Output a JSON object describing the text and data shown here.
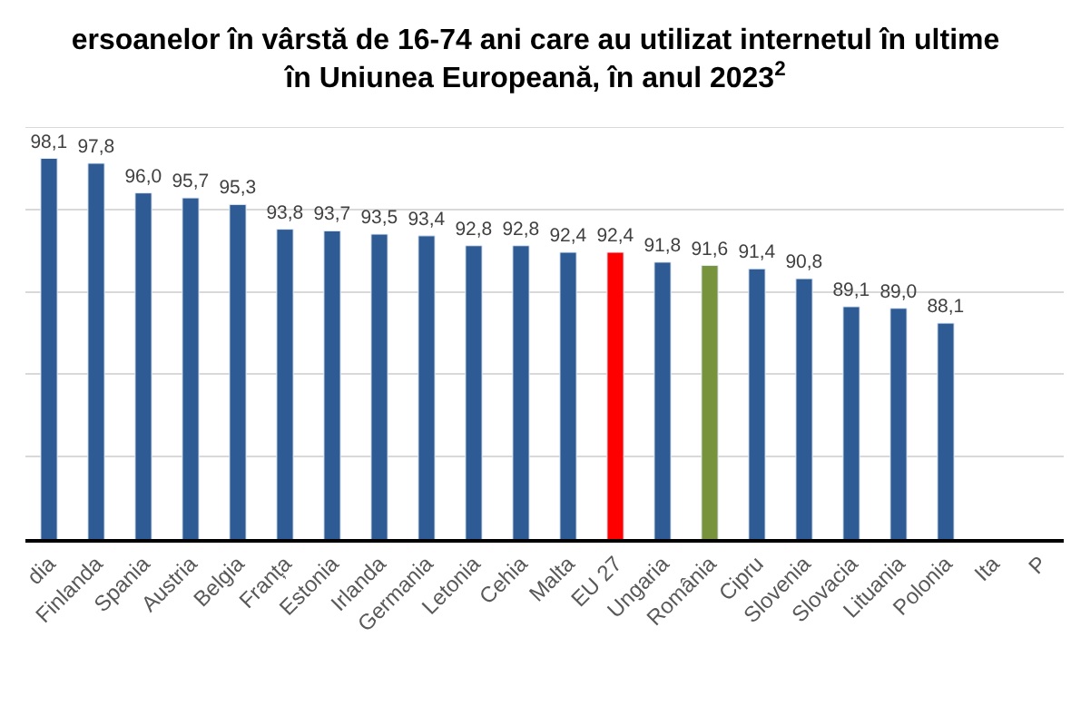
{
  "chart_data": {
    "type": "bar",
    "title": "ersoanelor în vârstă de 16-74 ani care au utilizat internetul în ultime\nîn Uniunea Europeană, în anul 2023$^{2}$",
    "categories": [
      "dia",
      "Finlanda",
      "Spania",
      "Austria",
      "Belgia",
      "Franța",
      "Estonia",
      "Irlanda",
      "Germania",
      "Letonia",
      "Cehia",
      "Malta",
      "EU 27",
      "Ungaria",
      "România",
      "Cipru",
      "Slovenia",
      "Slovacia",
      "Lituania",
      "Polonia",
      "Ita",
      "P"
    ],
    "values": [
      98.1,
      97.8,
      96.0,
      95.7,
      95.3,
      93.8,
      93.7,
      93.5,
      93.4,
      92.8,
      92.8,
      92.4,
      92.4,
      91.8,
      91.6,
      91.4,
      90.8,
      89.1,
      89.0,
      88.1,
      null,
      null
    ],
    "value_labels": [
      "98,1",
      "97,8",
      "96,0",
      "95,7",
      "95,3",
      "93,8",
      "93,7",
      "93,5",
      "93,4",
      "92,8",
      "92,8",
      "92,4",
      "92,4",
      "91,8",
      "91,6",
      "91,4",
      "90,8",
      "89,1",
      "89,0",
      "88,1",
      null,
      null
    ],
    "colors": [
      "#2f5b94",
      "#2f5b94",
      "#2f5b94",
      "#2f5b94",
      "#2f5b94",
      "#2f5b94",
      "#2f5b94",
      "#2f5b94",
      "#2f5b94",
      "#2f5b94",
      "#2f5b94",
      "#2f5b94",
      "#ff0000",
      "#2f5b94",
      "#77933c",
      "#2f5b94",
      "#2f5b94",
      "#2f5b94",
      "#2f5b94",
      "#2f5b94",
      "#2f5b94",
      "#2f5b94"
    ],
    "ylim": [
      75,
      100
    ],
    "yticks": [
      {
        "value": 75,
        "label": null
      },
      {
        "value": 80,
        "label": null
      },
      {
        "value": 85,
        "label": null
      },
      {
        "value": 90,
        "label": null
      },
      {
        "value": 95,
        "label": null
      },
      {
        "value": 100,
        "label": null
      }
    ],
    "grid": "y",
    "tick_labels": "x",
    "legend": false
  }
}
